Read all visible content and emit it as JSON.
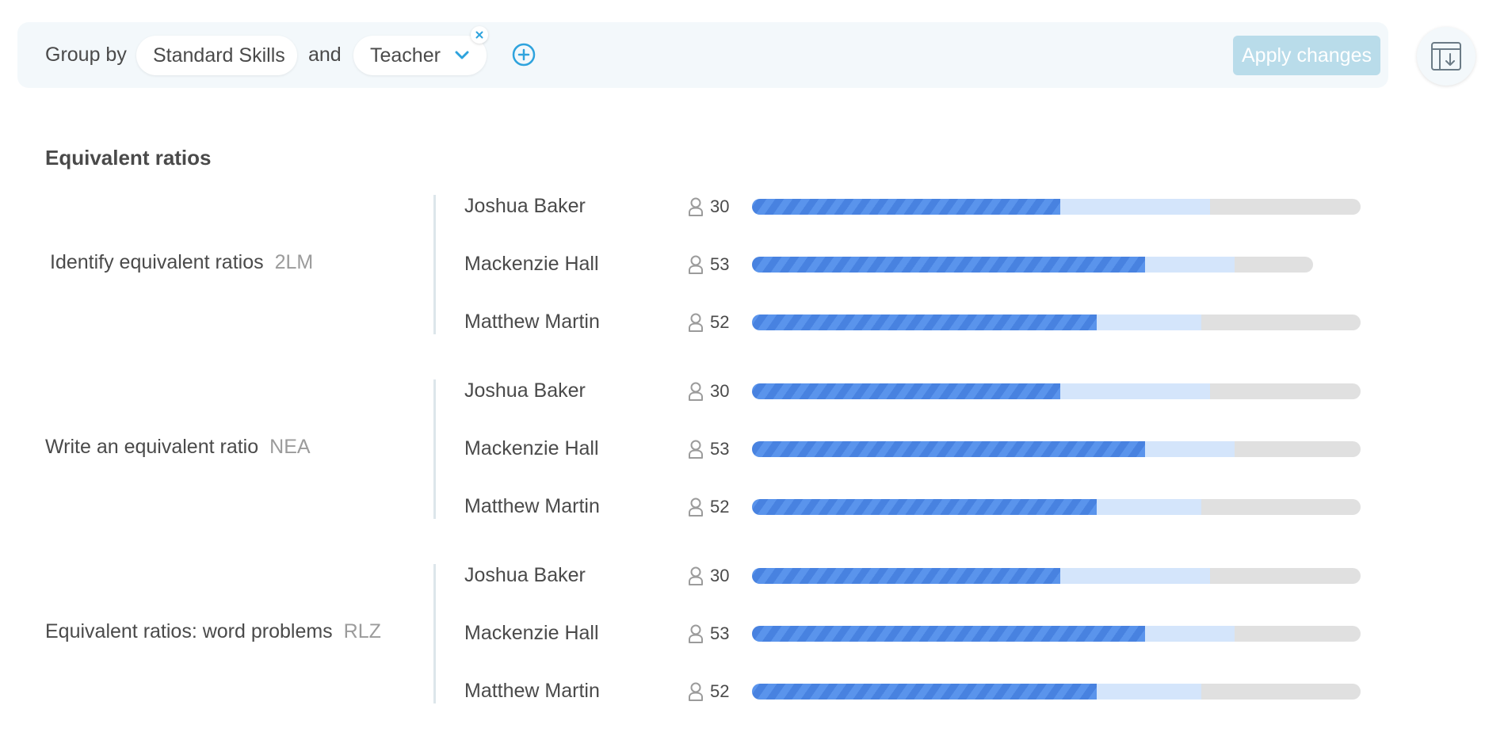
{
  "toolbar": {
    "group_by_label": "Group by",
    "first_group": "Standard Skills",
    "and_label": "and",
    "second_group": "Teacher",
    "apply_label": "Apply changes"
  },
  "colors": {
    "mastered": "#4a8ae6",
    "in_progress": "#d4e5fb",
    "remaining": "#e0e0e0",
    "accent": "#2ea3dd"
  },
  "section_title": "Equivalent ratios",
  "skills": [
    {
      "name": "Identify equivalent ratios",
      "code": "2LM",
      "rows": [
        {
          "teacher": "Joshua Baker",
          "students": "30",
          "mastered": 0.506,
          "in_progress": 0.753,
          "total": 1.0
        },
        {
          "teacher": "Mackenzie Hall",
          "students": "53",
          "mastered": 0.646,
          "in_progress": 0.793,
          "total": 0.922
        },
        {
          "teacher": "Matthew Martin",
          "students": "52",
          "mastered": 0.566,
          "in_progress": 0.738,
          "total": 1.0
        }
      ]
    },
    {
      "name": "Write an equivalent ratio",
      "code": "NEA",
      "rows": [
        {
          "teacher": "Joshua Baker",
          "students": "30",
          "mastered": 0.506,
          "in_progress": 0.753,
          "total": 1.0
        },
        {
          "teacher": "Mackenzie Hall",
          "students": "53",
          "mastered": 0.646,
          "in_progress": 0.793,
          "total": 1.0
        },
        {
          "teacher": "Matthew Martin",
          "students": "52",
          "mastered": 0.566,
          "in_progress": 0.738,
          "total": 1.0
        }
      ]
    },
    {
      "name": "Equivalent ratios: word problems",
      "code": "RLZ",
      "rows": [
        {
          "teacher": "Joshua Baker",
          "students": "30",
          "mastered": 0.506,
          "in_progress": 0.753,
          "total": 1.0
        },
        {
          "teacher": "Mackenzie Hall",
          "students": "53",
          "mastered": 0.646,
          "in_progress": 0.793,
          "total": 1.0
        },
        {
          "teacher": "Matthew Martin",
          "students": "52",
          "mastered": 0.566,
          "in_progress": 0.738,
          "total": 1.0
        }
      ]
    }
  ]
}
